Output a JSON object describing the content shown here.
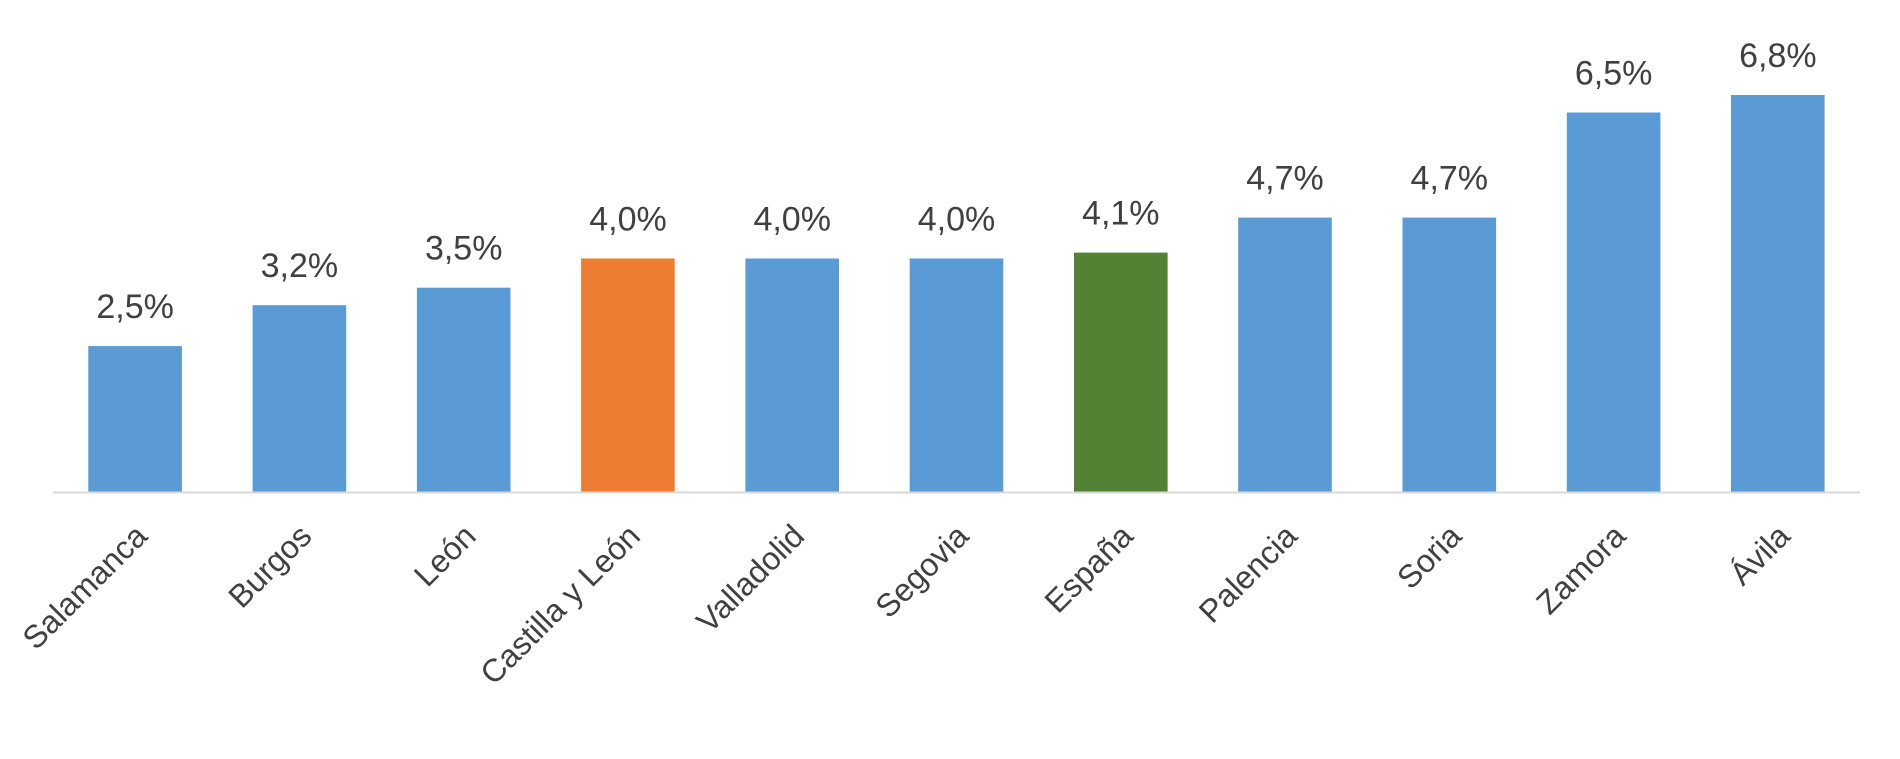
{
  "chart_data": {
    "type": "bar",
    "title": "",
    "xlabel": "",
    "ylabel": "",
    "ylim": [
      0,
      7.4
    ],
    "grid": false,
    "categories": [
      "Salamanca",
      "Burgos",
      "León",
      "Castilla y León",
      "Valladolid",
      "Segovia",
      "España",
      "Palencia",
      "Soria",
      "Zamora",
      "Ávila"
    ],
    "values": [
      2.5,
      3.2,
      3.5,
      4.0,
      4.0,
      4.0,
      4.1,
      4.7,
      4.7,
      6.5,
      6.8
    ],
    "value_labels": [
      "2,5%",
      "3,2%",
      "3,5%",
      "4,0%",
      "4,0%",
      "4,0%",
      "4,1%",
      "4,7%",
      "4,7%",
      "6,5%",
      "6,8%"
    ],
    "colors": [
      "#5B9BD5",
      "#5B9BD5",
      "#5B9BD5",
      "#ED7D31",
      "#5B9BD5",
      "#5B9BD5",
      "#548235",
      "#5B9BD5",
      "#5B9BD5",
      "#5B9BD5",
      "#5B9BD5"
    ],
    "axis_color": "#D9D9D9"
  }
}
